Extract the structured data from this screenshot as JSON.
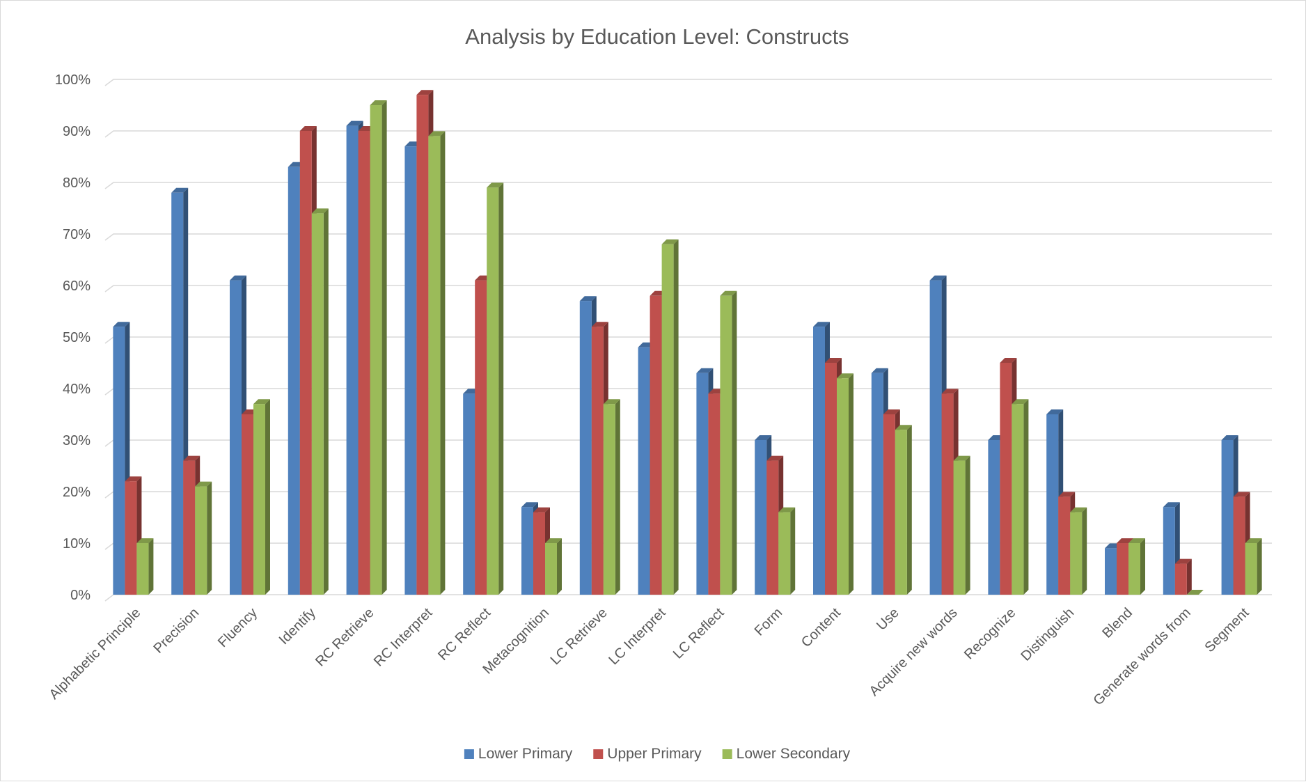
{
  "chart_data": {
    "type": "bar",
    "title": "Analysis by Education Level: Constructs",
    "xlabel": "",
    "ylabel": "",
    "ylim": [
      0,
      100
    ],
    "y_ticks": [
      0,
      10,
      20,
      30,
      40,
      50,
      60,
      70,
      80,
      90,
      100
    ],
    "y_tick_format": "percent",
    "y_tick_labels": [
      "0%",
      "10%",
      "20%",
      "30%",
      "40%",
      "50%",
      "60%",
      "70%",
      "80%",
      "90%",
      "100%"
    ],
    "grid": true,
    "style": "3d-clustered-column",
    "legend_position": "bottom",
    "categories": [
      "Alphabetic Principle",
      "Precision",
      "Fluency",
      "Identify",
      "RC Retrieve",
      "RC Interpret",
      "RC Reflect",
      "Metacognition",
      "LC Retrieve",
      "LC Interpret",
      "LC Reflect",
      "Form",
      "Content",
      "Use",
      "Acquire new words",
      "Recognize",
      "Distinguish",
      "Blend",
      "Generate words from",
      "Segment"
    ],
    "series": [
      {
        "name": "Lower Primary",
        "color": "#4f81bd",
        "values": [
          52,
          78,
          61,
          83,
          91,
          87,
          39,
          17,
          57,
          48,
          43,
          30,
          52,
          43,
          61,
          30,
          35,
          9,
          17,
          30
        ]
      },
      {
        "name": "Upper Primary",
        "color": "#c0504d",
        "values": [
          22,
          26,
          35,
          90,
          90,
          97,
          61,
          16,
          52,
          58,
          39,
          26,
          45,
          35,
          39,
          45,
          19,
          10,
          6,
          19
        ]
      },
      {
        "name": "Lower Secondary",
        "color": "#9bbb59",
        "values": [
          10,
          21,
          37,
          74,
          95,
          89,
          79,
          10,
          37,
          68,
          58,
          16,
          42,
          32,
          26,
          37,
          16,
          10,
          0,
          10
        ]
      }
    ]
  }
}
